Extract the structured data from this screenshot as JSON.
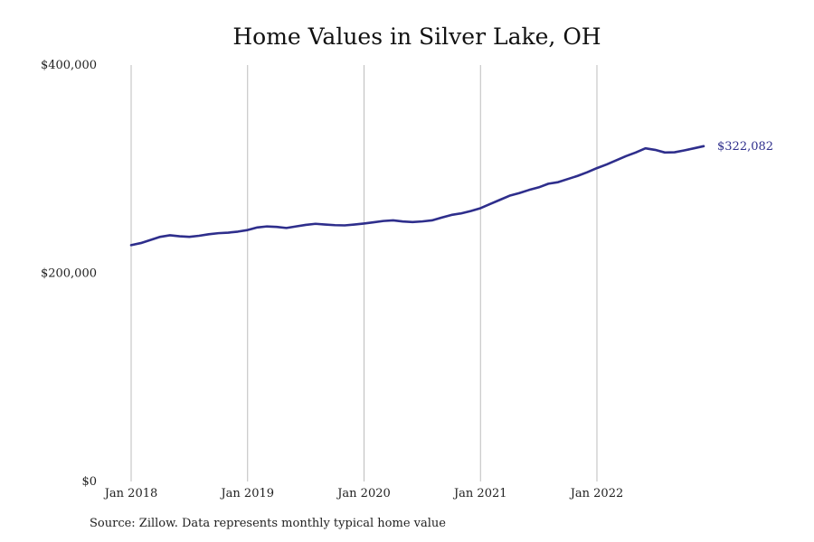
{
  "chart_data": {
    "type": "line",
    "title": "Home Values in Silver Lake, OH",
    "xlabel": "",
    "ylabel": "",
    "source_note": "Source: Zillow. Data represents monthly typical home value",
    "ylim": [
      0,
      400000
    ],
    "xlim": [
      "2018-01",
      "2022-12"
    ],
    "y_ticks": [
      {
        "value": 0,
        "label": "$0"
      },
      {
        "value": 200000,
        "label": "$200,000"
      },
      {
        "value": 400000,
        "label": "$400,000"
      }
    ],
    "x_ticks": [
      {
        "value": "2018-01",
        "label": "Jan 2018"
      },
      {
        "value": "2019-01",
        "label": "Jan 2019"
      },
      {
        "value": "2020-01",
        "label": "Jan 2020"
      },
      {
        "value": "2021-01",
        "label": "Jan 2021"
      },
      {
        "value": "2022-01",
        "label": "Jan 2022"
      }
    ],
    "grid": {
      "vertical": true,
      "horizontal": false
    },
    "line_color": "#2e2e8c",
    "grid_color": "#bdbdbd",
    "end_label": "$322,082",
    "series": [
      {
        "x": [
          "2018-01",
          "2018-02",
          "2018-03",
          "2018-04",
          "2018-05",
          "2018-06",
          "2018-07",
          "2018-08",
          "2018-09",
          "2018-10",
          "2018-11",
          "2018-12",
          "2019-01",
          "2019-02",
          "2019-03",
          "2019-04",
          "2019-05",
          "2019-06",
          "2019-07",
          "2019-08",
          "2019-09",
          "2019-10",
          "2019-11",
          "2019-12",
          "2020-01",
          "2020-02",
          "2020-03",
          "2020-04",
          "2020-05",
          "2020-06",
          "2020-07",
          "2020-08",
          "2020-09",
          "2020-10",
          "2020-11",
          "2020-12",
          "2021-01",
          "2021-02",
          "2021-03",
          "2021-04",
          "2021-05",
          "2021-06",
          "2021-07",
          "2021-08",
          "2021-09",
          "2021-10",
          "2021-11",
          "2021-12",
          "2022-01",
          "2022-02",
          "2022-03",
          "2022-04",
          "2022-05",
          "2022-06",
          "2022-07",
          "2022-08",
          "2022-09",
          "2022-10",
          "2022-11",
          "2022-12"
        ],
        "values": [
          227000,
          229000,
          232000,
          235000,
          236500,
          235500,
          235000,
          236000,
          237500,
          238500,
          239000,
          240000,
          241500,
          244000,
          245000,
          244500,
          243500,
          245000,
          246500,
          247500,
          246800,
          246200,
          246000,
          246800,
          247800,
          249000,
          250200,
          250800,
          249700,
          249200,
          249800,
          250800,
          253500,
          256000,
          257500,
          259800,
          262500,
          266500,
          270500,
          274500,
          277000,
          280000,
          282500,
          286000,
          287500,
          290500,
          293500,
          297000,
          301000,
          304500,
          308500,
          312500,
          316000,
          320000,
          318500,
          316000,
          316200,
          318000,
          320000,
          322082
        ]
      }
    ]
  }
}
